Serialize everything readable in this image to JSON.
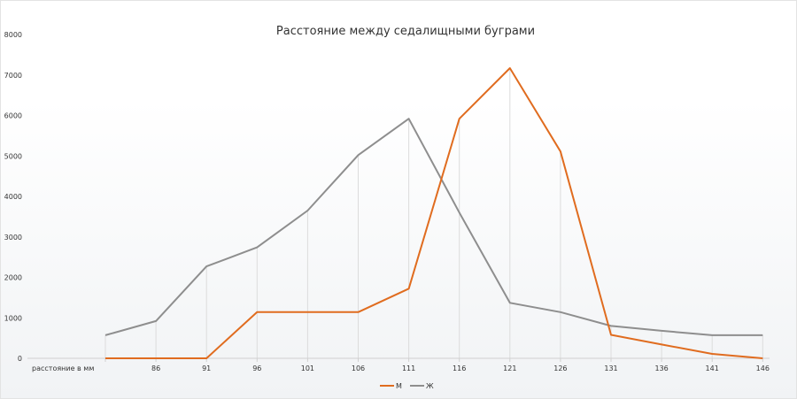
{
  "chart_data": {
    "type": "line",
    "title": "Расстояние между седалищными буграми",
    "category_label": "расстояние в мм",
    "categories": [
      "",
      "86",
      "91",
      "96",
      "101",
      "106",
      "111",
      "116",
      "121",
      "126",
      "131",
      "136",
      "141",
      "146"
    ],
    "ylim": [
      0,
      8000
    ],
    "yticks": [
      "0",
      "1000",
      "2000",
      "3000",
      "4000",
      "5000",
      "6000",
      "7000",
      "8000"
    ],
    "grid": "vertical-drop-lines",
    "legend_position": "bottom-center",
    "series": [
      {
        "name": "М",
        "color": "#e06c1f",
        "values": [
          0,
          0,
          0,
          1140,
          1140,
          1140,
          1720,
          5920,
          7170,
          5110,
          580,
          340,
          110,
          0
        ]
      },
      {
        "name": "Ж",
        "color": "#8e8e8e",
        "values": [
          570,
          920,
          2270,
          2740,
          3650,
          5020,
          5920,
          3600,
          1370,
          1140,
          800,
          680,
          570,
          570
        ]
      }
    ]
  }
}
